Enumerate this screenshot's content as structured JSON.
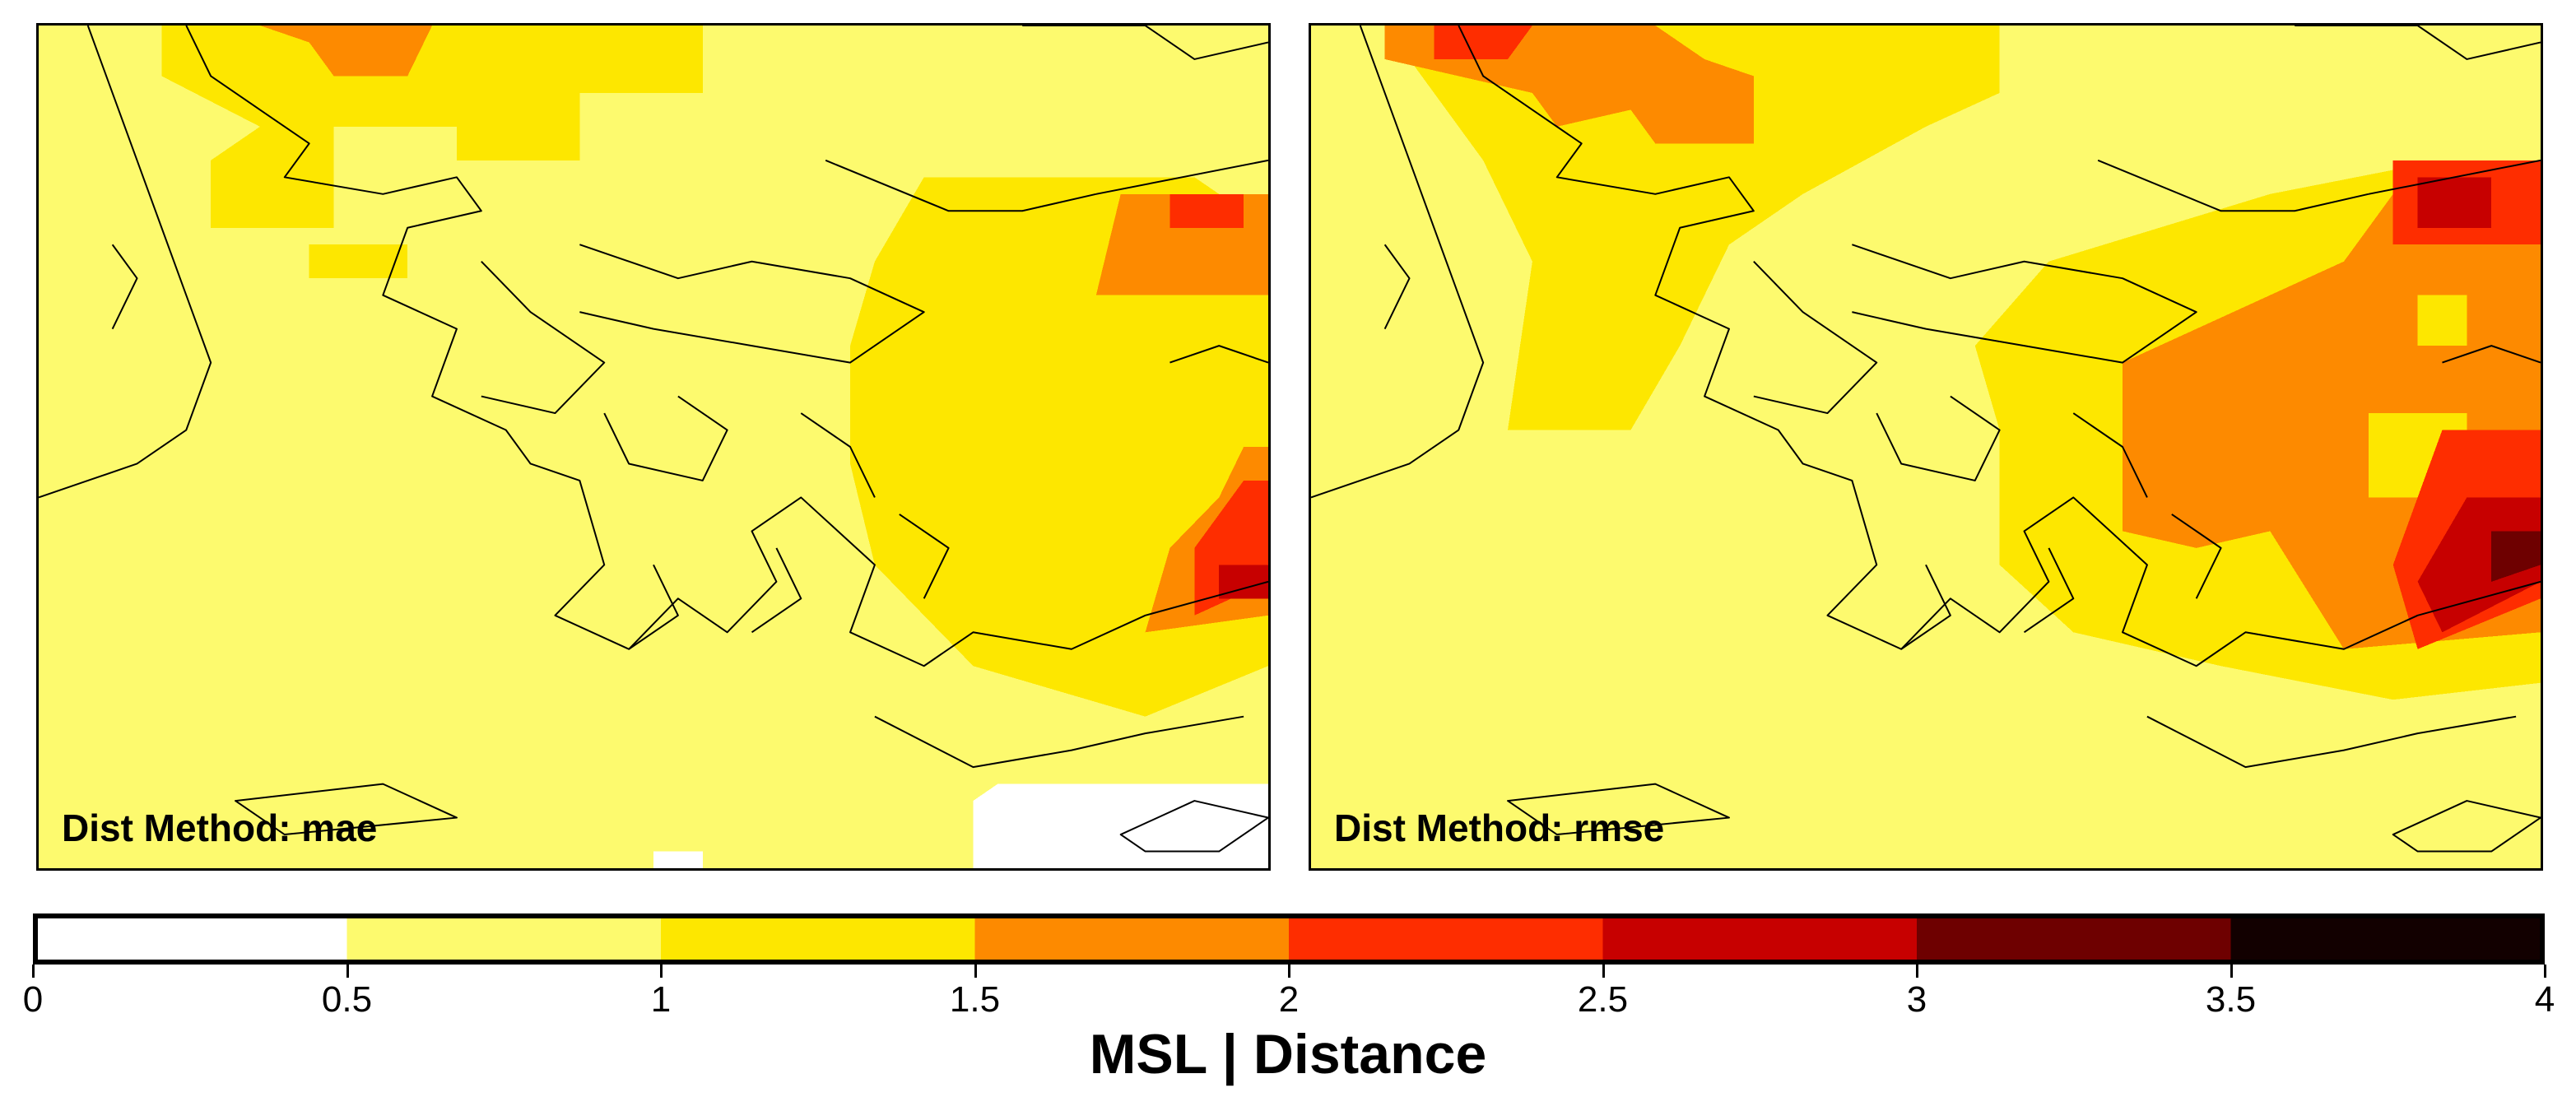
{
  "colorbar": {
    "title": "MSL | Distance",
    "breaks": [
      0,
      0.5,
      1,
      1.5,
      2,
      2.5,
      3,
      3.5,
      4
    ],
    "tick_labels": [
      "0",
      "0.5",
      "1",
      "1.5",
      "2",
      "2.5",
      "3",
      "3.5",
      "4"
    ],
    "colors": [
      "#ffffff",
      "#fdfa6e",
      "#fde700",
      "#fd8a00",
      "#fe2d00",
      "#c70000",
      "#6e0000",
      "#120000"
    ]
  },
  "panels": [
    {
      "label": "Dist Method: mae",
      "base_color": "#fdfa6e",
      "patches": [
        {
          "color": "#fde700",
          "points": [
            [
              5,
              0
            ],
            [
              27,
              0
            ],
            [
              27,
              4
            ],
            [
              22,
              4
            ],
            [
              22,
              8
            ],
            [
              17,
              8
            ],
            [
              17,
              6
            ],
            [
              12,
              6
            ],
            [
              12,
              12
            ],
            [
              7,
              12
            ],
            [
              7,
              8
            ],
            [
              9,
              6
            ],
            [
              5,
              3
            ]
          ]
        },
        {
          "color": "#fd8a00",
          "points": [
            [
              9,
              0
            ],
            [
              16,
              0
            ],
            [
              15,
              3
            ],
            [
              12,
              3
            ],
            [
              11,
              1
            ]
          ]
        },
        {
          "color": "#fde700",
          "points": [
            [
              11,
              13
            ],
            [
              15,
              13
            ],
            [
              15,
              15
            ],
            [
              11,
              15
            ]
          ]
        },
        {
          "color": "#fde700",
          "points": [
            [
              36,
              9
            ],
            [
              47,
              9
            ],
            [
              50,
              12
            ],
            [
              50,
              38
            ],
            [
              45,
              41
            ],
            [
              38,
              38
            ],
            [
              34,
              32
            ],
            [
              33,
              26
            ],
            [
              33,
              19
            ],
            [
              34,
              14
            ]
          ]
        },
        {
          "color": "#fd8a00",
          "points": [
            [
              44,
              10
            ],
            [
              50,
              10
            ],
            [
              50,
              16
            ],
            [
              43,
              16
            ]
          ]
        },
        {
          "color": "#fe2d00",
          "points": [
            [
              46,
              10
            ],
            [
              49,
              10
            ],
            [
              49,
              12
            ],
            [
              46,
              12
            ]
          ]
        },
        {
          "color": "#fd8a00",
          "points": [
            [
              49,
              25
            ],
            [
              50,
              25
            ],
            [
              50,
              35
            ],
            [
              45,
              36
            ],
            [
              46,
              31
            ],
            [
              48,
              28
            ]
          ]
        },
        {
          "color": "#fe2d00",
          "points": [
            [
              49,
              27
            ],
            [
              50,
              27
            ],
            [
              50,
              33
            ],
            [
              47,
              35
            ],
            [
              47,
              31
            ]
          ]
        },
        {
          "color": "#c70000",
          "points": [
            [
              48,
              32
            ],
            [
              50,
              32
            ],
            [
              50,
              34
            ],
            [
              48,
              34
            ]
          ]
        },
        {
          "color": "#ffffff",
          "points": [
            [
              39,
              45
            ],
            [
              50,
              45
            ],
            [
              50,
              50
            ],
            [
              38,
              50
            ],
            [
              38,
              46
            ]
          ]
        },
        {
          "color": "#ffffff",
          "points": [
            [
              25,
              49
            ],
            [
              27,
              49
            ],
            [
              27,
              50
            ],
            [
              25,
              50
            ]
          ]
        }
      ]
    },
    {
      "label": "Dist Method: rmse",
      "base_color": "#fdfa6e",
      "patches": [
        {
          "color": "#fde700",
          "points": [
            [
              3,
              0
            ],
            [
              28,
              0
            ],
            [
              28,
              4
            ],
            [
              25,
              6
            ],
            [
              20,
              10
            ],
            [
              17,
              13
            ],
            [
              15,
              19
            ],
            [
              13,
              24
            ],
            [
              8,
              24
            ],
            [
              9,
              14
            ],
            [
              7,
              8
            ],
            [
              5,
              4
            ]
          ]
        },
        {
          "color": "#fd8a00",
          "points": [
            [
              3,
              0
            ],
            [
              14,
              0
            ],
            [
              16,
              2
            ],
            [
              18,
              3
            ],
            [
              18,
              7
            ],
            [
              14,
              7
            ],
            [
              13,
              5
            ],
            [
              10,
              6
            ],
            [
              9,
              4
            ],
            [
              6,
              3
            ],
            [
              3,
              2
            ]
          ]
        },
        {
          "color": "#fe2d00",
          "points": [
            [
              5,
              0
            ],
            [
              9,
              0
            ],
            [
              8,
              2
            ],
            [
              5,
              2
            ]
          ]
        },
        {
          "color": "#fde700",
          "points": [
            [
              30,
              14
            ],
            [
              39,
              10
            ],
            [
              46,
              8
            ],
            [
              50,
              9
            ],
            [
              50,
              39
            ],
            [
              44,
              40
            ],
            [
              37,
              38
            ],
            [
              31,
              36
            ],
            [
              28,
              32
            ],
            [
              28,
              24
            ],
            [
              27,
              19
            ]
          ]
        },
        {
          "color": "#fd8a00",
          "points": [
            [
              33,
              20
            ],
            [
              42,
              14
            ],
            [
              45,
              8
            ],
            [
              50,
              8
            ],
            [
              50,
              36
            ],
            [
              42,
              37
            ],
            [
              39,
              30
            ],
            [
              36,
              31
            ],
            [
              33,
              30
            ],
            [
              33,
              25
            ]
          ]
        },
        {
          "color": "#fde700",
          "points": [
            [
              43,
              23
            ],
            [
              47,
              23
            ],
            [
              47,
              28
            ],
            [
              43,
              28
            ]
          ]
        },
        {
          "color": "#fde700",
          "points": [
            [
              45,
              16
            ],
            [
              47,
              16
            ],
            [
              47,
              19
            ],
            [
              45,
              19
            ]
          ]
        },
        {
          "color": "#fe2d00",
          "points": [
            [
              44,
              8
            ],
            [
              50,
              8
            ],
            [
              50,
              13
            ],
            [
              44,
              13
            ]
          ]
        },
        {
          "color": "#c70000",
          "points": [
            [
              45,
              9
            ],
            [
              48,
              9
            ],
            [
              48,
              12
            ],
            [
              45,
              12
            ]
          ]
        },
        {
          "color": "#fe2d00",
          "points": [
            [
              46,
              24
            ],
            [
              50,
              24
            ],
            [
              50,
              34
            ],
            [
              45,
              37
            ],
            [
              44,
              32
            ]
          ]
        },
        {
          "color": "#c70000",
          "points": [
            [
              47,
              28
            ],
            [
              50,
              28
            ],
            [
              50,
              33
            ],
            [
              46,
              36
            ],
            [
              45,
              33
            ]
          ]
        },
        {
          "color": "#6e0000",
          "points": [
            [
              48,
              30
            ],
            [
              50,
              30
            ],
            [
              50,
              32
            ],
            [
              48,
              33
            ]
          ]
        }
      ]
    }
  ]
}
